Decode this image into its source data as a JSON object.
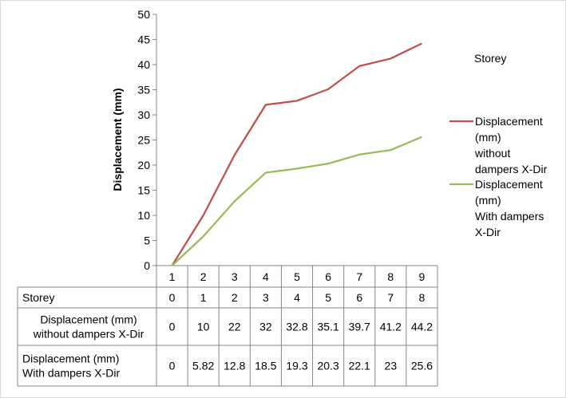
{
  "chart_data": {
    "type": "line",
    "ylabel": "Displacement (mm)",
    "categories": [
      "1",
      "2",
      "3",
      "4",
      "5",
      "6",
      "7",
      "8",
      "9"
    ],
    "ylim": [
      0,
      50
    ],
    "yticks": [
      "0",
      "5",
      "10",
      "15",
      "20",
      "25",
      "30",
      "35",
      "40",
      "45",
      "50"
    ],
    "grid": false,
    "legend_position": "right",
    "legend_title": "Storey",
    "table": {
      "storey_label": "Storey",
      "storey_values": [
        "0",
        "1",
        "2",
        "3",
        "4",
        "5",
        "6",
        "7",
        "8"
      ]
    },
    "series": [
      {
        "name": "Displacement (mm) without dampers X-Dir",
        "legend_lines": [
          "Displacement",
          "(mm)",
          "without",
          "dampers X-Dir"
        ],
        "table_lines": [
          "Displacement (mm)",
          "without dampers X-Dir"
        ],
        "color": "#c0504d",
        "values": [
          0,
          10,
          22,
          32,
          32.8,
          35.1,
          39.7,
          41.2,
          44.2
        ],
        "value_labels": [
          "0",
          "10",
          "22",
          "32",
          "32.8",
          "35.1",
          "39.7",
          "41.2",
          "44.2"
        ]
      },
      {
        "name": "Displacement (mm) With dampers X-Dir",
        "legend_lines": [
          "Displacement",
          "(mm)",
          "With dampers",
          "X-Dir"
        ],
        "table_lines": [
          "Displacement (mm)",
          "With dampers X-Dir"
        ],
        "color": "#9bbb59",
        "values": [
          0,
          5.82,
          12.8,
          18.5,
          19.3,
          20.3,
          22.1,
          23,
          25.6
        ],
        "value_labels": [
          "0",
          "5.82",
          "12.8",
          "18.5",
          "19.3",
          "20.3",
          "22.1",
          "23",
          "25.6"
        ]
      }
    ]
  }
}
